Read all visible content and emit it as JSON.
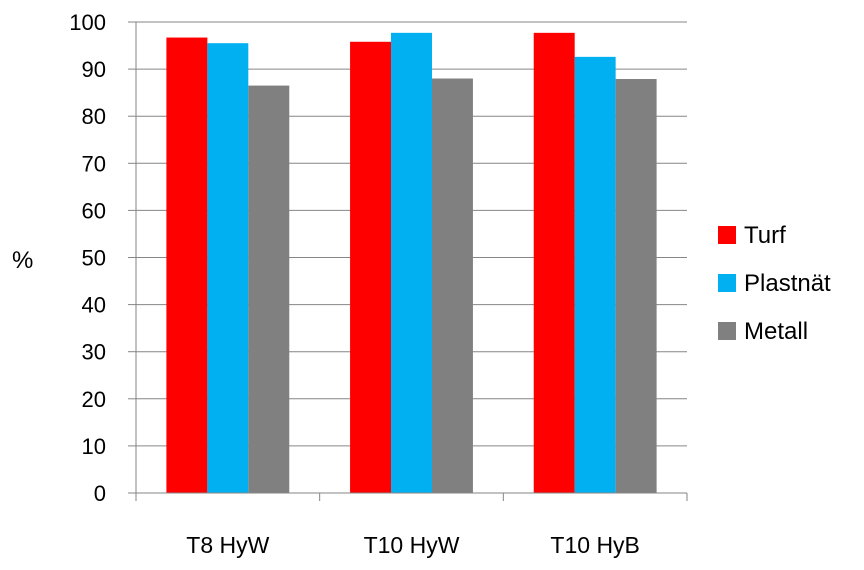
{
  "chart_data": {
    "type": "bar",
    "categories": [
      "T8 HyW",
      "T10 HyW",
      "T10 HyB"
    ],
    "series": [
      {
        "name": "Turf",
        "color": "#ff0000",
        "values": [
          96.7,
          95.8,
          97.7
        ]
      },
      {
        "name": "Plastnät",
        "color": "#00b0f0",
        "values": [
          95.5,
          97.7,
          92.6
        ]
      },
      {
        "name": "Metall",
        "color": "#808080",
        "values": [
          86.5,
          88.0,
          87.9
        ]
      }
    ],
    "title": "",
    "xlabel": "",
    "ylabel": "%",
    "ylim": [
      0,
      100
    ],
    "yticks": [
      "0",
      "10",
      "20",
      "30",
      "40",
      "50",
      "60",
      "70",
      "80",
      "90",
      "100"
    ],
    "grid": true,
    "legend_position": "right"
  }
}
